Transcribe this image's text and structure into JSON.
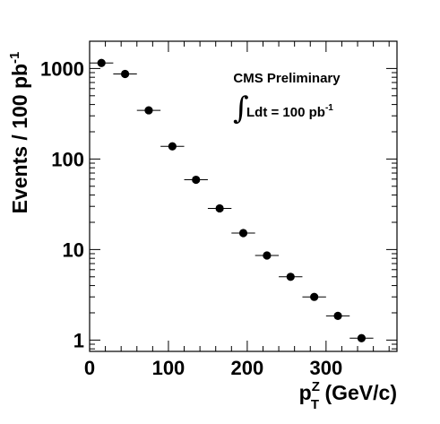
{
  "chart_data": {
    "type": "scatter",
    "title": "",
    "xlabel": {
      "main": "p",
      "sup": "Z",
      "sub": "T",
      "rest": " (GeV/c)"
    },
    "ylabel": {
      "main": "Events / 100 pb",
      "sup": "-1"
    },
    "xlim": [
      0,
      390
    ],
    "ylim": [
      0.75,
      2000
    ],
    "yscale": "log",
    "grid": false,
    "x_ticks": [
      0,
      100,
      200,
      300
    ],
    "x_tick_labels": [
      "0",
      "100",
      "200",
      "300"
    ],
    "y_ticks": [
      1,
      10,
      100,
      1000
    ],
    "y_tick_labels": [
      "1",
      "10",
      "100",
      "1000"
    ],
    "annotations": {
      "line1": "CMS Preliminary",
      "integral": "∫",
      "lumi_main": "Ldt = 100 pb",
      "lumi_sup": "-1"
    },
    "series": [
      {
        "bin_half_width": 15,
        "points": [
          {
            "x": 15,
            "y": 1150
          },
          {
            "x": 45,
            "y": 870
          },
          {
            "x": 75,
            "y": 345
          },
          {
            "x": 105,
            "y": 138
          },
          {
            "x": 135,
            "y": 59
          },
          {
            "x": 165,
            "y": 28.5
          },
          {
            "x": 195,
            "y": 15.2
          },
          {
            "x": 225,
            "y": 8.6
          },
          {
            "x": 255,
            "y": 5.0
          },
          {
            "x": 285,
            "y": 3.0
          },
          {
            "x": 315,
            "y": 1.85
          },
          {
            "x": 345,
            "y": 1.05
          }
        ]
      }
    ]
  }
}
